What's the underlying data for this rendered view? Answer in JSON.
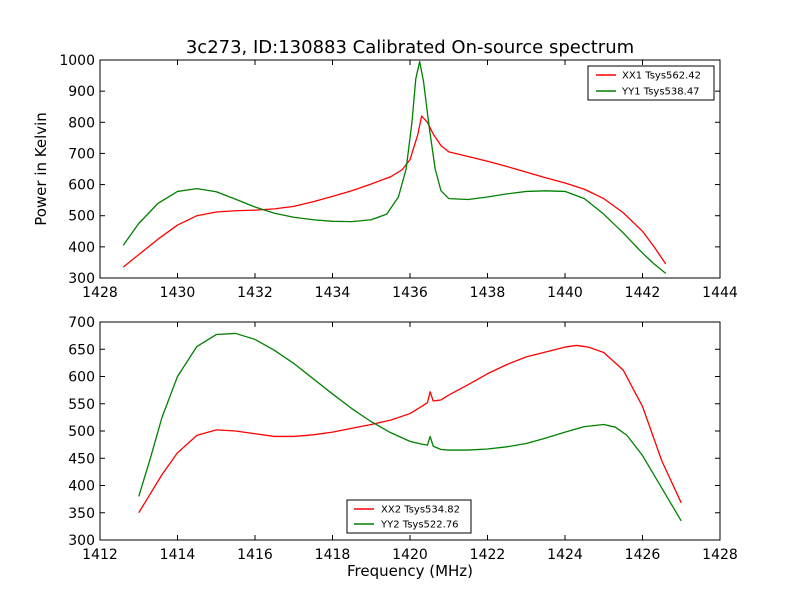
{
  "figure": {
    "title": "3c273, ID:130883 Calibrated On-source spectrum",
    "xlabel": "Frequency (MHz)"
  },
  "chart_data": [
    {
      "type": "line",
      "title": "3c273, ID:130883 Calibrated On-source spectrum",
      "xlabel": "",
      "ylabel": "Power in Kelvin",
      "xlim": [
        1428,
        1444
      ],
      "ylim": [
        300,
        1000
      ],
      "xticks": [
        1428,
        1430,
        1432,
        1434,
        1436,
        1438,
        1440,
        1442,
        1444
      ],
      "yticks": [
        300,
        400,
        500,
        600,
        700,
        800,
        900,
        1000
      ],
      "grid": false,
      "legend_position": "top-right",
      "series": [
        {
          "name": "XX1 Tsys562.42",
          "color": "#ff0000",
          "x": [
            1428.6,
            1429.0,
            1429.5,
            1430.0,
            1430.5,
            1431.0,
            1431.5,
            1432.0,
            1432.5,
            1433.0,
            1433.5,
            1434.0,
            1434.5,
            1435.0,
            1435.5,
            1435.8,
            1436.0,
            1436.2,
            1436.3,
            1436.45,
            1436.6,
            1436.8,
            1437.0,
            1437.5,
            1438.0,
            1438.5,
            1439.0,
            1439.5,
            1440.0,
            1440.5,
            1441.0,
            1441.5,
            1442.0,
            1442.3,
            1442.6
          ],
          "y": [
            335,
            375,
            425,
            470,
            500,
            512,
            516,
            518,
            522,
            530,
            545,
            562,
            580,
            602,
            625,
            648,
            680,
            760,
            820,
            800,
            762,
            725,
            705,
            690,
            675,
            658,
            640,
            622,
            605,
            585,
            555,
            510,
            450,
            400,
            345
          ]
        },
        {
          "name": "YY1 Tsys538.47",
          "color": "#008000",
          "x": [
            1428.6,
            1429.0,
            1429.5,
            1430.0,
            1430.5,
            1431.0,
            1431.5,
            1432.0,
            1432.5,
            1433.0,
            1433.5,
            1434.0,
            1434.5,
            1435.0,
            1435.4,
            1435.7,
            1435.9,
            1436.05,
            1436.15,
            1436.25,
            1436.35,
            1436.5,
            1436.65,
            1436.8,
            1437.0,
            1437.5,
            1438.0,
            1438.5,
            1439.0,
            1439.5,
            1440.0,
            1440.5,
            1441.0,
            1441.5,
            1442.0,
            1442.3,
            1442.6
          ],
          "y": [
            405,
            475,
            540,
            578,
            587,
            577,
            553,
            528,
            508,
            495,
            487,
            482,
            481,
            487,
            505,
            560,
            650,
            800,
            940,
            995,
            930,
            780,
            650,
            580,
            555,
            552,
            560,
            570,
            578,
            580,
            578,
            555,
            505,
            445,
            380,
            345,
            315
          ]
        }
      ]
    },
    {
      "type": "line",
      "title": "",
      "xlabel": "Frequency (MHz)",
      "ylabel": "",
      "xlim": [
        1412,
        1428
      ],
      "ylim": [
        300,
        700
      ],
      "xticks": [
        1412,
        1414,
        1416,
        1418,
        1420,
        1422,
        1424,
        1426,
        1428
      ],
      "yticks": [
        300,
        350,
        400,
        450,
        500,
        550,
        600,
        650,
        700
      ],
      "grid": false,
      "legend_position": "bottom-center",
      "series": [
        {
          "name": "XX2 Tsys534.82",
          "color": "#ff0000",
          "x": [
            1413.0,
            1413.3,
            1413.6,
            1414.0,
            1414.5,
            1415.0,
            1415.5,
            1416.0,
            1416.5,
            1417.0,
            1417.5,
            1418.0,
            1418.5,
            1419.0,
            1419.5,
            1420.0,
            1420.3,
            1420.45,
            1420.52,
            1420.6,
            1420.8,
            1421.0,
            1421.5,
            1422.0,
            1422.5,
            1423.0,
            1423.5,
            1424.0,
            1424.3,
            1424.6,
            1425.0,
            1425.5,
            1426.0,
            1426.5,
            1427.0
          ],
          "y": [
            350,
            385,
            420,
            460,
            492,
            502,
            500,
            495,
            490,
            490,
            493,
            498,
            505,
            512,
            520,
            532,
            545,
            552,
            572,
            555,
            557,
            566,
            585,
            605,
            622,
            636,
            645,
            654,
            657,
            654,
            644,
            612,
            545,
            445,
            368
          ]
        },
        {
          "name": "YY2 Tsys522.76",
          "color": "#008000",
          "x": [
            1413.0,
            1413.3,
            1413.6,
            1414.0,
            1414.5,
            1415.0,
            1415.5,
            1416.0,
            1416.5,
            1417.0,
            1417.5,
            1418.0,
            1418.5,
            1419.0,
            1419.5,
            1420.0,
            1420.3,
            1420.45,
            1420.52,
            1420.6,
            1420.8,
            1421.0,
            1421.5,
            1422.0,
            1422.5,
            1423.0,
            1423.5,
            1424.0,
            1424.5,
            1425.0,
            1425.3,
            1425.6,
            1426.0,
            1426.5,
            1427.0
          ],
          "y": [
            380,
            450,
            525,
            600,
            655,
            677,
            679,
            668,
            648,
            624,
            596,
            568,
            541,
            517,
            497,
            481,
            476,
            474,
            490,
            472,
            466,
            465,
            465,
            467,
            471,
            477,
            487,
            498,
            508,
            512,
            507,
            492,
            455,
            395,
            335
          ]
        }
      ]
    }
  ]
}
